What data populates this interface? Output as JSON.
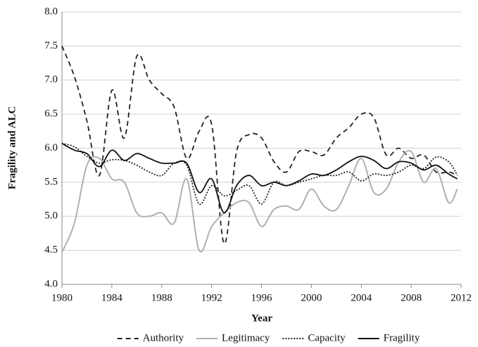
{
  "chart_data": {
    "type": "line",
    "xlabel": "Year",
    "ylabel": "Fragility and ALC",
    "x": [
      1980,
      1981,
      1982,
      1983,
      1984,
      1985,
      1986,
      1987,
      1988,
      1989,
      1990,
      1991,
      1992,
      1993,
      1994,
      1995,
      1996,
      1997,
      1998,
      1999,
      2000,
      2001,
      2002,
      2003,
      2004,
      2005,
      2006,
      2007,
      2008,
      2009,
      2010,
      2011,
      2011.7
    ],
    "series": [
      {
        "name": "Authority",
        "color": "#222222",
        "dash": "7,5",
        "values": [
          7.5,
          7.05,
          6.4,
          5.6,
          6.85,
          6.15,
          7.35,
          7.0,
          6.8,
          6.6,
          5.85,
          6.25,
          6.35,
          4.6,
          5.95,
          6.2,
          6.15,
          5.8,
          5.65,
          5.95,
          5.95,
          5.9,
          6.15,
          6.3,
          6.5,
          6.45,
          5.9,
          6.0,
          5.85,
          5.9,
          5.65,
          5.65,
          5.6
        ]
      },
      {
        "name": "Legitimacy",
        "color": "#b0b0b0",
        "dash": "none",
        "values": [
          4.47,
          4.9,
          5.75,
          5.85,
          5.55,
          5.5,
          5.05,
          5.0,
          5.05,
          4.9,
          5.55,
          4.5,
          4.85,
          5.05,
          5.2,
          5.2,
          4.85,
          5.1,
          5.15,
          5.1,
          5.4,
          5.15,
          5.1,
          5.45,
          5.85,
          5.35,
          5.4,
          5.8,
          5.95,
          5.5,
          5.7,
          5.2,
          5.4
        ]
      },
      {
        "name": "Capacity",
        "color": "#222222",
        "dash": "2,2",
        "values": [
          6.07,
          6.02,
          5.88,
          5.78,
          5.83,
          5.82,
          5.75,
          5.65,
          5.6,
          5.78,
          5.75,
          5.18,
          5.45,
          5.3,
          5.38,
          5.45,
          5.18,
          5.5,
          5.45,
          5.5,
          5.55,
          5.6,
          5.6,
          5.65,
          5.52,
          5.62,
          5.6,
          5.65,
          5.75,
          5.7,
          5.87,
          5.8,
          5.6
        ]
      },
      {
        "name": "Fragility",
        "color": "#111111",
        "dash": "none",
        "values": [
          6.07,
          5.97,
          5.92,
          5.73,
          5.97,
          5.82,
          5.92,
          5.85,
          5.78,
          5.78,
          5.78,
          5.35,
          5.55,
          5.05,
          5.45,
          5.6,
          5.45,
          5.5,
          5.45,
          5.52,
          5.62,
          5.6,
          5.68,
          5.8,
          5.88,
          5.82,
          5.7,
          5.8,
          5.78,
          5.68,
          5.75,
          5.62,
          5.55
        ]
      }
    ],
    "xlim": [
      1980,
      2012
    ],
    "xticks": [
      1980,
      1984,
      1988,
      1992,
      1996,
      2000,
      2004,
      2008,
      2012
    ],
    "ylim": [
      4,
      8
    ],
    "yticks": [
      {
        "value": 4,
        "label": "4.0"
      },
      {
        "value": 4.5,
        "label": "4.5"
      },
      {
        "value": 5,
        "label": "5.0"
      },
      {
        "value": 5.5,
        "label": "5.5"
      },
      {
        "value": 6,
        "label": "6.0"
      },
      {
        "value": 6.5,
        "label": "6.5"
      },
      {
        "value": 7,
        "label": "7.0"
      },
      {
        "value": 7.5,
        "label": "7.5"
      },
      {
        "value": 8,
        "label": "8.0"
      }
    ],
    "grid": true,
    "legend": "bottom"
  }
}
